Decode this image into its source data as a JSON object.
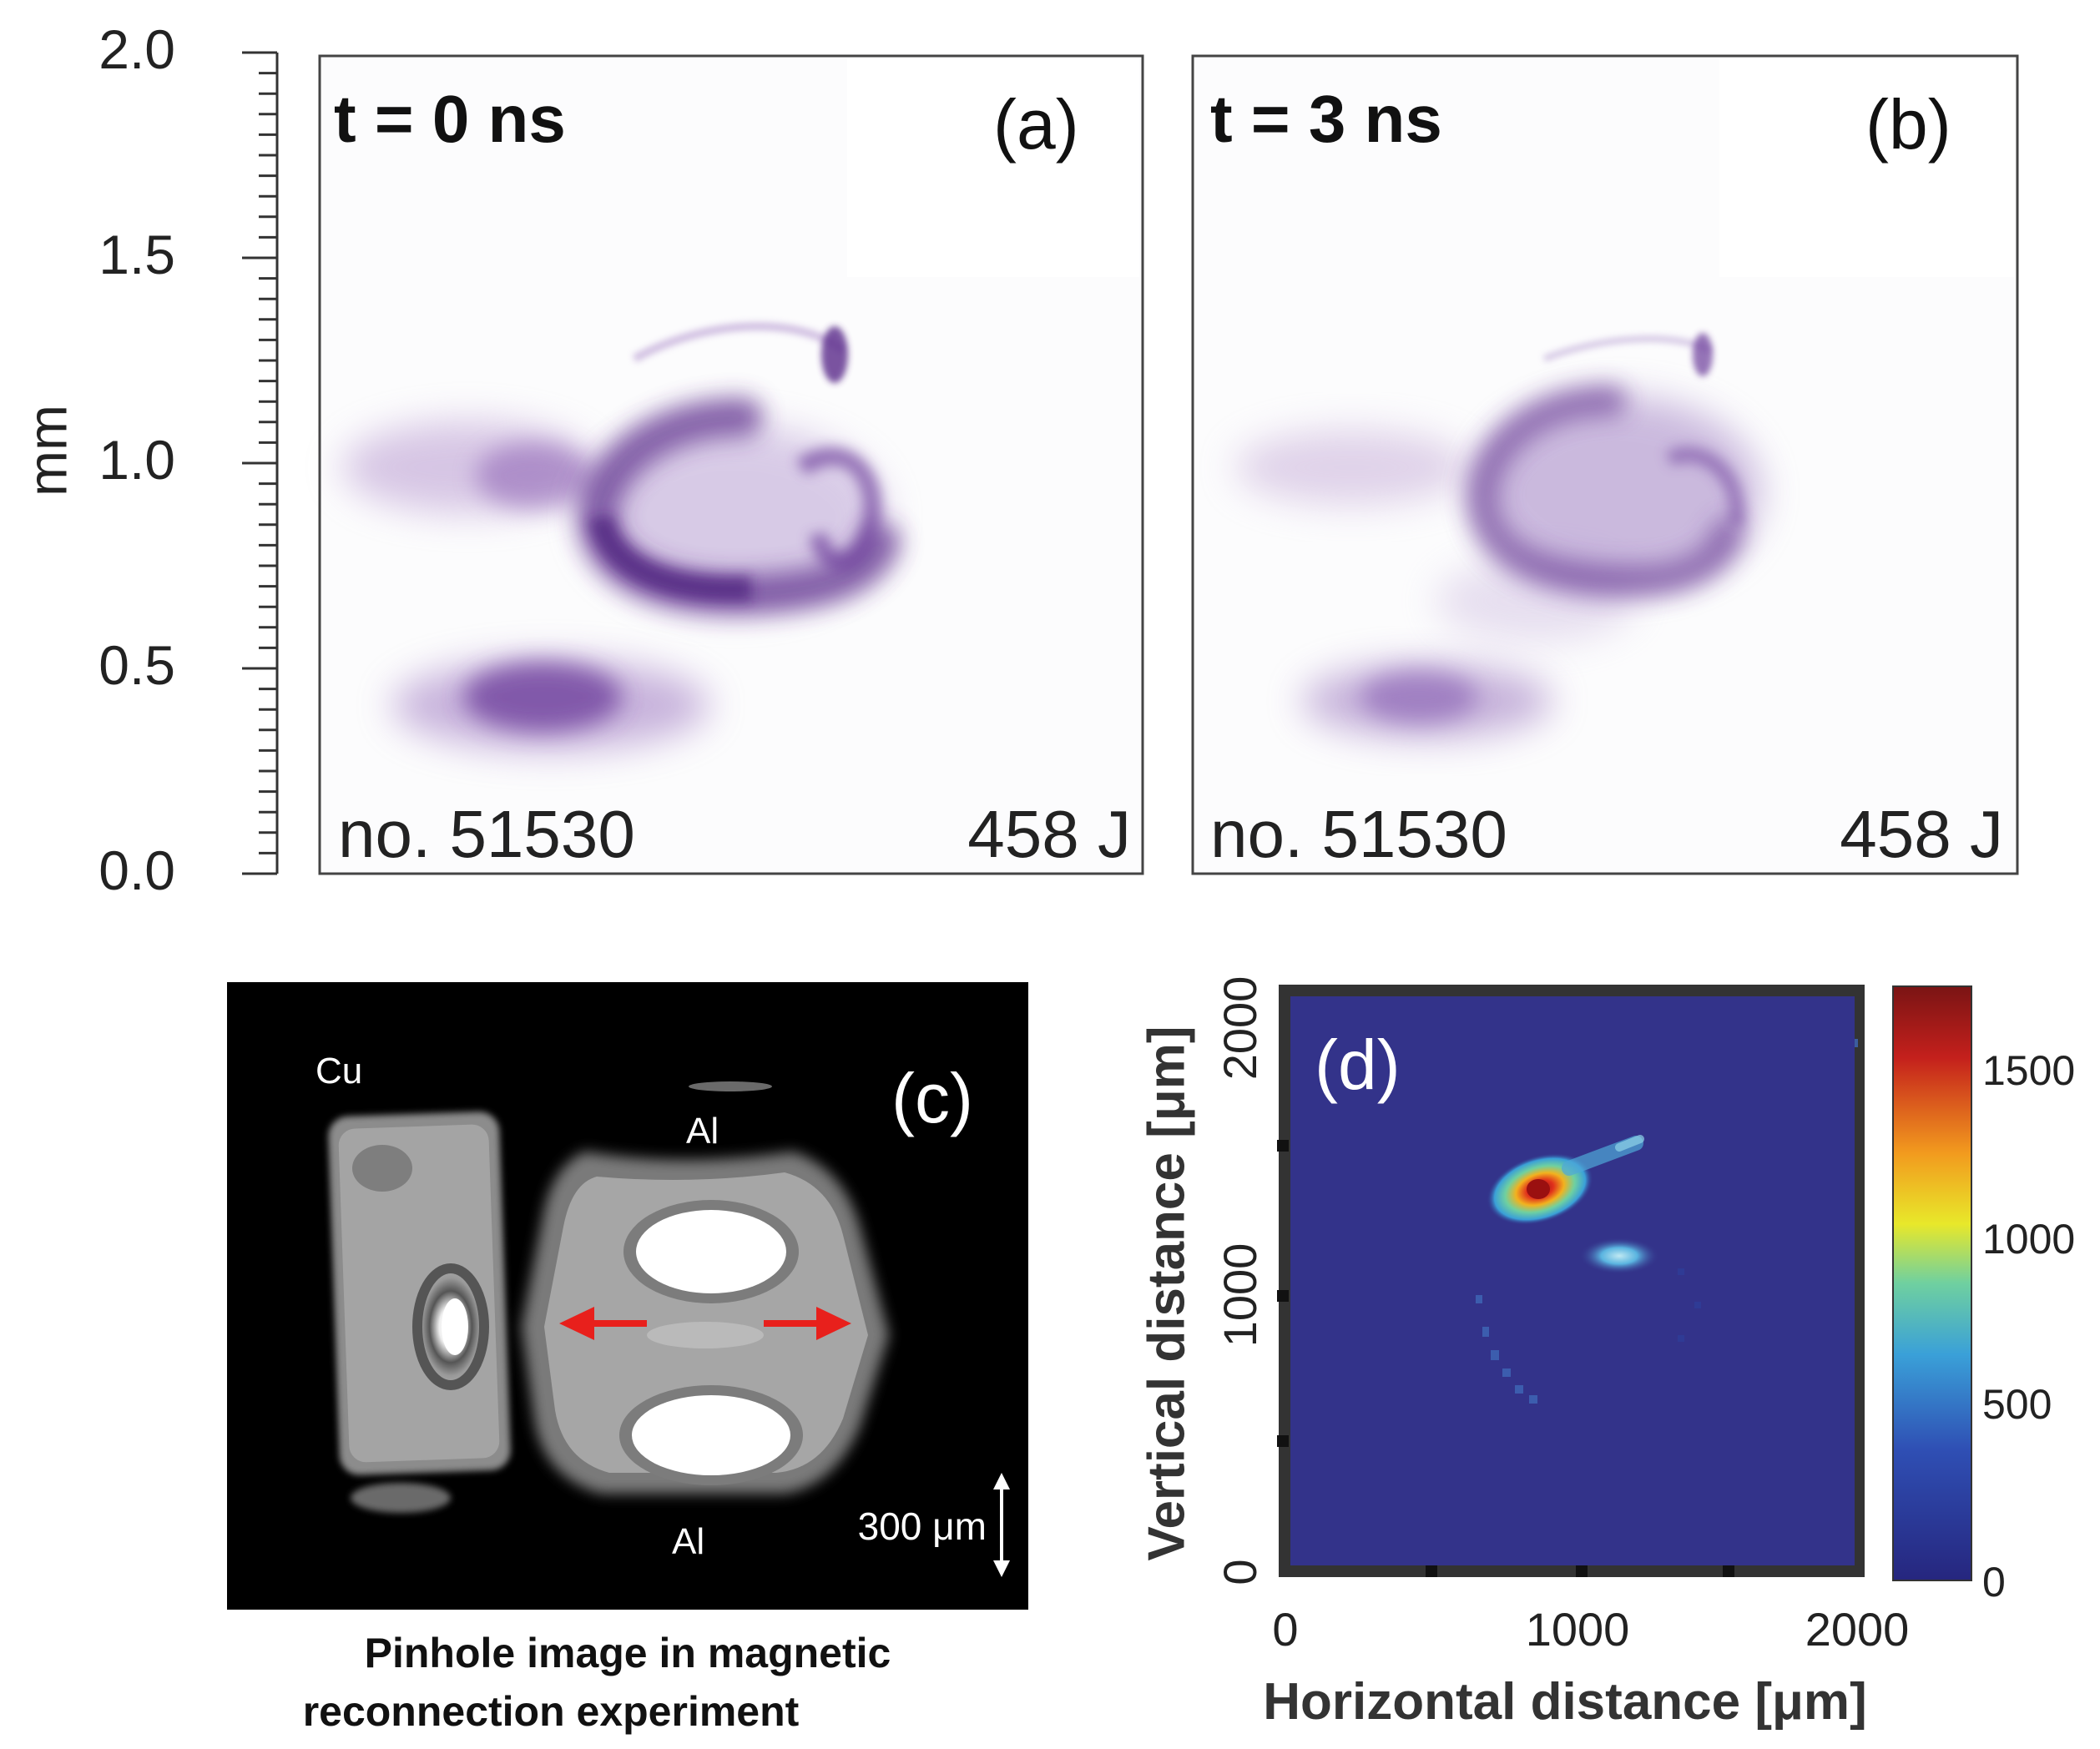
{
  "figure": {
    "top_axis": {
      "unit_label": "mm",
      "tick_labels": [
        "2.0",
        "1.5",
        "1.0",
        "0.5",
        "0.0"
      ]
    },
    "panel_a": {
      "time_label": "t = 0 ns",
      "panel_label": "(a)",
      "shot_label": "no. 51530",
      "energy_label": "458 J"
    },
    "panel_b": {
      "time_label": "t = 3 ns",
      "panel_label": "(b)",
      "shot_label": "no. 51530",
      "energy_label": "458 J"
    },
    "panel_c": {
      "panel_label": "(c)",
      "cu_label": "Cu",
      "al_top_label": "Al",
      "al_bottom_label": "Al",
      "scale_label": "300 μm",
      "caption_line1": "Pinhole image in magnetic",
      "caption_line2": "reconnection experiment",
      "arrow_color": "#e8201c"
    },
    "panel_d": {
      "panel_label": "(d)",
      "xlabel": "Horizontal distance [μm]",
      "ylabel": "Vertical distance [μm]",
      "x_ticks": [
        "0",
        "1000",
        "2000"
      ],
      "y_ticks": [
        "0",
        "1000",
        "2000"
      ],
      "colorbar_ticks": [
        "1500",
        "1000",
        "500",
        "0"
      ],
      "background_color": "#33338a",
      "colormap": [
        "#26267e",
        "#2f4fb4",
        "#3aa0d8",
        "#6fd0a0",
        "#e8e82a",
        "#f29a1e",
        "#c4201c",
        "#7a1414"
      ]
    },
    "colors": {
      "plasma_purple": "#5a2a8a",
      "panel_c_background": "#000000"
    }
  }
}
